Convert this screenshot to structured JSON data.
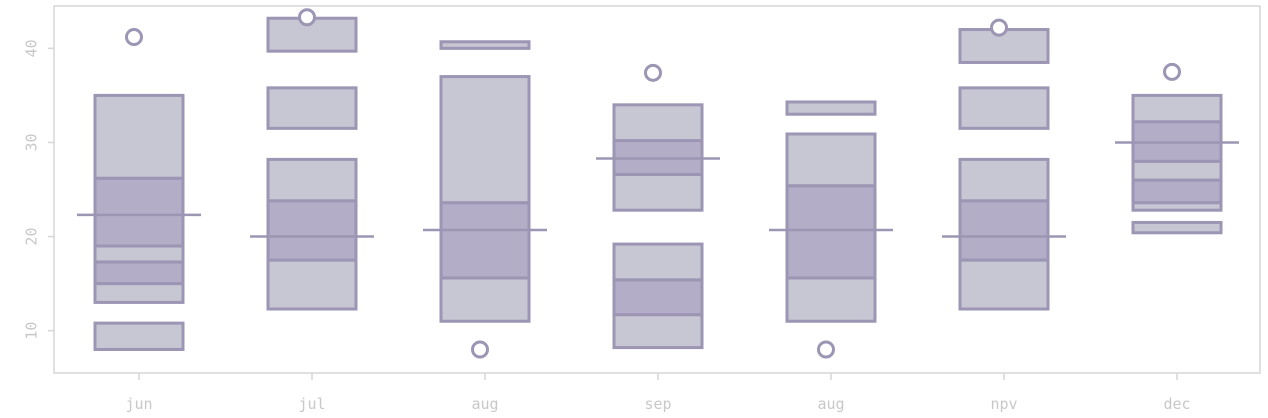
{
  "chart_data": {
    "type": "box",
    "categories": [
      "jun",
      "jul",
      "aug",
      "sep",
      "aug",
      "npv",
      "dec"
    ],
    "y_ticks": [
      10,
      20,
      30,
      40
    ],
    "ylim": [
      5.5,
      44.5
    ],
    "grid": false,
    "colors": {
      "stroke": "#9c95b4",
      "fill_light": "#c7c6d3",
      "fill_mid": "#b3adc7",
      "axis": "#d6d6d6",
      "text": "#c8c8c8"
    },
    "series": [
      {
        "category": "jun",
        "median": 22.3,
        "segments": [
          [
            13,
            15,
            "light"
          ],
          [
            15,
            17.3,
            "mid"
          ],
          [
            17.3,
            19,
            "light"
          ],
          [
            19,
            26.2,
            "mid"
          ],
          [
            26.2,
            35,
            "light"
          ],
          [
            8,
            10.8,
            "light"
          ]
        ],
        "outliers": [
          41.2
        ]
      },
      {
        "category": "jul",
        "median": 20,
        "segments": [
          [
            12.3,
            17.5,
            "light"
          ],
          [
            17.5,
            23.8,
            "mid"
          ],
          [
            23.8,
            28.2,
            "light"
          ],
          [
            31.5,
            35.8,
            "light"
          ],
          [
            39.7,
            43.2,
            "light"
          ]
        ],
        "outliers": [
          43.3
        ]
      },
      {
        "category": "aug",
        "median": 20.7,
        "segments": [
          [
            11,
            15.6,
            "light"
          ],
          [
            15.6,
            23.6,
            "mid"
          ],
          [
            23.6,
            37,
            "light"
          ],
          [
            40,
            40.7,
            "light"
          ]
        ],
        "outliers": [
          8
        ]
      },
      {
        "category": "sep",
        "median": 28.3,
        "segments": [
          [
            8.2,
            11.7,
            "light"
          ],
          [
            11.7,
            15.4,
            "mid"
          ],
          [
            15.4,
            19.2,
            "light"
          ],
          [
            22.8,
            26.6,
            "light"
          ],
          [
            26.6,
            30.2,
            "mid"
          ],
          [
            30.2,
            34,
            "light"
          ]
        ],
        "outliers": [
          37.4
        ]
      },
      {
        "category": "aug",
        "median": 20.7,
        "segments": [
          [
            11,
            15.6,
            "light"
          ],
          [
            15.6,
            25.4,
            "mid"
          ],
          [
            25.4,
            30.9,
            "light"
          ],
          [
            33,
            34.3,
            "light"
          ]
        ],
        "outliers": [
          8
        ]
      },
      {
        "category": "npv",
        "median": 20,
        "segments": [
          [
            12.3,
            17.5,
            "light"
          ],
          [
            17.5,
            23.8,
            "mid"
          ],
          [
            23.8,
            28.2,
            "light"
          ],
          [
            31.5,
            35.8,
            "light"
          ],
          [
            38.5,
            42,
            "light"
          ]
        ],
        "outliers": [
          42.2
        ]
      },
      {
        "category": "dec",
        "median": 30,
        "segments": [
          [
            20.4,
            21.5,
            "light"
          ],
          [
            22.8,
            23.6,
            "light"
          ],
          [
            23.6,
            26,
            "mid"
          ],
          [
            26,
            28,
            "light"
          ],
          [
            28,
            32.2,
            "mid"
          ],
          [
            32.2,
            35,
            "light"
          ]
        ],
        "outliers": [
          37.5
        ]
      }
    ]
  }
}
